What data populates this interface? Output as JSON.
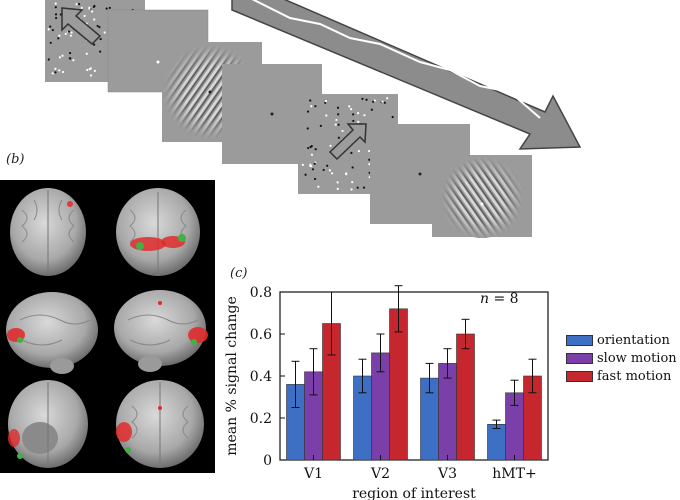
{
  "labels": {
    "panel_b": "(b)",
    "panel_c": "(c)"
  },
  "chart_data": {
    "type": "bar",
    "categories": [
      "V1",
      "V2",
      "V3",
      "hMT+"
    ],
    "series": [
      {
        "name": "orientation",
        "values": [
          0.36,
          0.4,
          0.39,
          0.17
        ],
        "errors": [
          0.11,
          0.08,
          0.07,
          0.02
        ],
        "color": "#3d6fc4"
      },
      {
        "name": "slow motion",
        "values": [
          0.42,
          0.51,
          0.46,
          0.32
        ],
        "errors": [
          0.11,
          0.09,
          0.07,
          0.06
        ],
        "color": "#7a3fa8"
      },
      {
        "name": "fast motion",
        "values": [
          0.65,
          0.72,
          0.6,
          0.4
        ],
        "errors": [
          0.15,
          0.11,
          0.07,
          0.08
        ],
        "color": "#c6272e"
      }
    ],
    "xlabel": "region of interest",
    "ylabel": "mean % signal change",
    "ylim": [
      0,
      0.8
    ],
    "yticks": [
      "0",
      "0.2",
      "0.4",
      "0.6",
      "0.8"
    ],
    "annotation_n_letter": "n",
    "annotation_n_value": " = 8",
    "legend_position": "right"
  }
}
